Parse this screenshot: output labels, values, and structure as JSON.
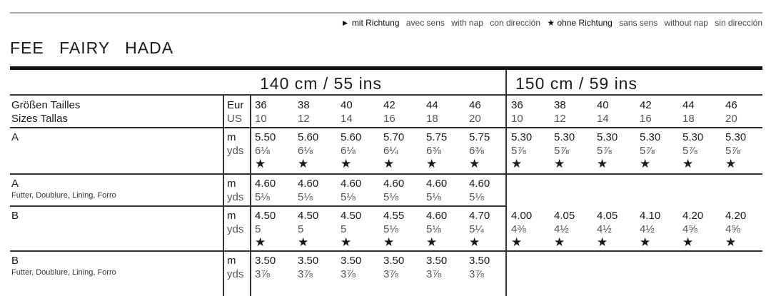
{
  "legend": {
    "with_nap_symbol": "►",
    "with_nap_de": "mit Richtung",
    "with_nap_fr": "avec sens",
    "with_nap_en": "with nap",
    "with_nap_es": "con dirección",
    "without_nap_symbol": "★",
    "without_nap_de": "ohne Richtung",
    "without_nap_fr": "sans sens",
    "without_nap_en": "without nap",
    "without_nap_es": "sin dirección"
  },
  "title": "FEE FAIRY HADA",
  "widths": [
    "140 cm / 55 ins",
    "150 cm / 59 ins"
  ],
  "size_label": {
    "line1": "Größen Tailles",
    "line2": "Sizes Tallas",
    "eur": "Eur",
    "us": "US"
  },
  "eur_sizes": [
    "36",
    "38",
    "40",
    "42",
    "44",
    "46",
    "36",
    "38",
    "40",
    "42",
    "44",
    "46"
  ],
  "us_sizes": [
    "10",
    "12",
    "14",
    "16",
    "18",
    "20",
    "10",
    "12",
    "14",
    "16",
    "18",
    "20"
  ],
  "rows": [
    {
      "label": "A",
      "sub": "",
      "m_label": "m",
      "yds_label": "yds",
      "m": [
        "5.50",
        "5.60",
        "5.60",
        "5.70",
        "5.75",
        "5.75",
        "5.30",
        "5.30",
        "5.30",
        "5.30",
        "5.30",
        "5.30"
      ],
      "yds": [
        "6⅛",
        "6⅛",
        "6⅛",
        "6¼",
        "6⅜",
        "6⅜",
        "5⅞",
        "5⅞",
        "5⅞",
        "5⅞",
        "5⅞",
        "5⅞"
      ],
      "nap": "★",
      "nap_count": 12
    },
    {
      "label": "A",
      "sub": "Futter, Doublure, Lining, Forro",
      "m_label": "m",
      "yds_label": "yds",
      "m": [
        "4.60",
        "4.60",
        "4.60",
        "4.60",
        "4.60",
        "4.60"
      ],
      "yds": [
        "5⅛",
        "5⅛",
        "5⅛",
        "5⅛",
        "5⅛",
        "5⅛"
      ],
      "nap": "",
      "nap_count": 0
    },
    {
      "label": "B",
      "sub": "",
      "m_label": "m",
      "yds_label": "yds",
      "m": [
        "4.50",
        "4.50",
        "4.50",
        "4.55",
        "4.60",
        "4.70",
        "4.00",
        "4.05",
        "4.05",
        "4.10",
        "4.20",
        "4.20"
      ],
      "yds": [
        "5",
        "5",
        "5",
        "5⅛",
        "5⅛",
        "5¼",
        "4⅜",
        "4½",
        "4½",
        "4½",
        "4⅝",
        "4⅝"
      ],
      "nap": "★",
      "nap_count": 12
    },
    {
      "label": "B",
      "sub": "Futter, Doublure, Lining, Forro",
      "m_label": "m",
      "yds_label": "yds",
      "m": [
        "3.50",
        "3.50",
        "3.50",
        "3.50",
        "3.50",
        "3.50"
      ],
      "yds": [
        "3⅞",
        "3⅞",
        "3⅞",
        "3⅞",
        "3⅞",
        "3⅞"
      ],
      "nap": "",
      "nap_count": 0
    }
  ]
}
